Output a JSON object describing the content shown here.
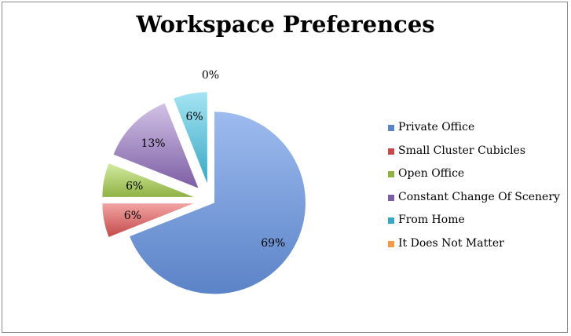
{
  "chart_data": {
    "type": "pie",
    "title": "Workspace Preferences",
    "exploded": true,
    "legend_position": "right",
    "slices": [
      {
        "label": "Private Office",
        "value": 69,
        "display": "69%",
        "color": "#5b83c7",
        "color_light": "#9dbbef"
      },
      {
        "label": "Small Cluster Cubicles",
        "value": 6,
        "display": "6%",
        "color": "#c44a4a",
        "color_light": "#f2a4a4"
      },
      {
        "label": "Open Office",
        "value": 6,
        "display": "6%",
        "color": "#8fb244",
        "color_light": "#d3eca0"
      },
      {
        "label": "Constant Change Of Scenery",
        "value": 13,
        "display": "13%",
        "color": "#7c5ea4",
        "color_light": "#d2c2e6"
      },
      {
        "label": "From Home",
        "value": 6,
        "display": "6%",
        "color": "#3aa8c4",
        "color_light": "#a5e4f3"
      },
      {
        "label": "It Does Not Matter",
        "value": 0,
        "display": "0%",
        "color": "#f39a4a",
        "color_light": "#fbc493"
      }
    ]
  }
}
